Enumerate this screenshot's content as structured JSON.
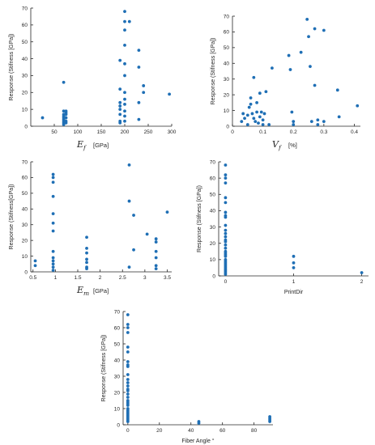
{
  "point_color": "#1f6fb5",
  "chart_data": [
    {
      "type": "scatter",
      "title": "",
      "ylabel": "Response (Stifness [GPa])",
      "xlabel": {
        "symbol": "E",
        "sub": "f",
        "unit": "[GPa]",
        "plain": ""
      },
      "xlim": [
        0,
        300
      ],
      "ylim": [
        0,
        70
      ],
      "xticks": [
        50,
        100,
        150,
        200,
        250,
        300
      ],
      "yticks": [
        0,
        10,
        20,
        30,
        40,
        50,
        60,
        70
      ],
      "grid": false,
      "points": [
        [
          25,
          5
        ],
        [
          70,
          26
        ],
        [
          70,
          9
        ],
        [
          70,
          7
        ],
        [
          70,
          6
        ],
        [
          70,
          5
        ],
        [
          70,
          4
        ],
        [
          70,
          3
        ],
        [
          70,
          2
        ],
        [
          70,
          1
        ],
        [
          75,
          9
        ],
        [
          75,
          8
        ],
        [
          75,
          7
        ],
        [
          75,
          5
        ],
        [
          75,
          3
        ],
        [
          75,
          2
        ],
        [
          190,
          39
        ],
        [
          190,
          22
        ],
        [
          190,
          14
        ],
        [
          190,
          12
        ],
        [
          190,
          10
        ],
        [
          190,
          7
        ],
        [
          190,
          3
        ],
        [
          190,
          2
        ],
        [
          200,
          68
        ],
        [
          200,
          62
        ],
        [
          200,
          57
        ],
        [
          200,
          48
        ],
        [
          200,
          37
        ],
        [
          200,
          30
        ],
        [
          200,
          20
        ],
        [
          200,
          16
        ],
        [
          200,
          13
        ],
        [
          200,
          9
        ],
        [
          200,
          6
        ],
        [
          200,
          3
        ],
        [
          210,
          62
        ],
        [
          230,
          45
        ],
        [
          230,
          35
        ],
        [
          230,
          14
        ],
        [
          230,
          4
        ],
        [
          240,
          24
        ],
        [
          240,
          20
        ],
        [
          295,
          19
        ]
      ]
    },
    {
      "type": "scatter",
      "title": "",
      "ylabel": "Response (Stifness [GPa])",
      "xlabel": {
        "symbol": "V",
        "sub": "f",
        "unit": "[%]",
        "plain": ""
      },
      "xlim": [
        0,
        0.42
      ],
      "ylim": [
        0,
        70
      ],
      "xticks": [
        0,
        0.1,
        0.2,
        0.3,
        0.4
      ],
      "xtick_labels": [
        "0",
        "0.1",
        "0.2",
        "0.3",
        "0.4"
      ],
      "yticks": [
        0,
        10,
        20,
        30,
        40,
        50,
        60,
        70
      ],
      "grid": false,
      "points": [
        [
          0.03,
          3
        ],
        [
          0.035,
          8
        ],
        [
          0.04,
          5
        ],
        [
          0.05,
          1
        ],
        [
          0.05,
          7
        ],
        [
          0.055,
          12
        ],
        [
          0.06,
          18
        ],
        [
          0.06,
          14
        ],
        [
          0.065,
          8
        ],
        [
          0.07,
          31
        ],
        [
          0.07,
          5
        ],
        [
          0.075,
          3
        ],
        [
          0.08,
          9
        ],
        [
          0.08,
          15
        ],
        [
          0.085,
          2
        ],
        [
          0.09,
          21
        ],
        [
          0.09,
          6
        ],
        [
          0.095,
          9
        ],
        [
          0.1,
          4
        ],
        [
          0.1,
          1
        ],
        [
          0.105,
          8
        ],
        [
          0.11,
          22
        ],
        [
          0.12,
          1
        ],
        [
          0.13,
          37
        ],
        [
          0.185,
          45
        ],
        [
          0.19,
          36
        ],
        [
          0.195,
          9
        ],
        [
          0.2,
          3
        ],
        [
          0.2,
          1
        ],
        [
          0.225,
          47
        ],
        [
          0.245,
          68
        ],
        [
          0.25,
          57
        ],
        [
          0.255,
          38
        ],
        [
          0.26,
          3
        ],
        [
          0.27,
          62
        ],
        [
          0.27,
          26
        ],
        [
          0.28,
          1
        ],
        [
          0.28,
          4
        ],
        [
          0.3,
          61
        ],
        [
          0.3,
          3
        ],
        [
          0.345,
          23
        ],
        [
          0.35,
          6
        ],
        [
          0.41,
          13
        ]
      ]
    },
    {
      "type": "scatter",
      "title": "",
      "ylabel": "Response (Stifness[GPa])",
      "xlabel": {
        "symbol": "E",
        "sub": "m",
        "unit": "[GPa]",
        "plain": ""
      },
      "xlim": [
        0.45,
        3.6
      ],
      "ylim": [
        0,
        70
      ],
      "xticks": [
        0.5,
        1,
        1.5,
        2,
        2.5,
        3,
        3.5
      ],
      "xtick_labels": [
        "0.5",
        "1",
        "1.5",
        "2",
        "2.5",
        "3",
        "3.5"
      ],
      "yticks": [
        0,
        10,
        20,
        30,
        40,
        50,
        60,
        70
      ],
      "grid": false,
      "points": [
        [
          0.55,
          7
        ],
        [
          0.55,
          4
        ],
        [
          0.95,
          62
        ],
        [
          0.95,
          60
        ],
        [
          0.95,
          57
        ],
        [
          0.95,
          48
        ],
        [
          0.95,
          37
        ],
        [
          0.95,
          31
        ],
        [
          0.95,
          26
        ],
        [
          0.95,
          13
        ],
        [
          0.95,
          9
        ],
        [
          0.95,
          7
        ],
        [
          0.95,
          5
        ],
        [
          0.95,
          3
        ],
        [
          0.95,
          1
        ],
        [
          1.7,
          22
        ],
        [
          1.7,
          15
        ],
        [
          1.7,
          12
        ],
        [
          1.7,
          8
        ],
        [
          1.7,
          6
        ],
        [
          1.7,
          3
        ],
        [
          1.7,
          2
        ],
        [
          2.65,
          68
        ],
        [
          2.65,
          45
        ],
        [
          2.75,
          36
        ],
        [
          2.75,
          14
        ],
        [
          2.65,
          3
        ],
        [
          3.05,
          24
        ],
        [
          3.25,
          21
        ],
        [
          3.25,
          19
        ],
        [
          3.25,
          13
        ],
        [
          3.25,
          9
        ],
        [
          3.25,
          4
        ],
        [
          3.25,
          2
        ],
        [
          3.5,
          38
        ]
      ]
    },
    {
      "type": "scatter",
      "title": "",
      "ylabel": "Response (Stifness [GPa])",
      "xlabel": {
        "symbol": "",
        "sub": "",
        "unit": "",
        "plain": "PrintDir"
      },
      "xlim": [
        -0.1,
        2.1
      ],
      "ylim": [
        0,
        70
      ],
      "xticks": [
        0,
        1,
        2
      ],
      "xtick_labels": [
        "0",
        "1",
        "2"
      ],
      "yticks": [
        0,
        10,
        20,
        30,
        40,
        50,
        60,
        70
      ],
      "grid": false,
      "points": [
        [
          0,
          68
        ],
        [
          0,
          62
        ],
        [
          0,
          60
        ],
        [
          0,
          57
        ],
        [
          0,
          48
        ],
        [
          0,
          45
        ],
        [
          0,
          39
        ],
        [
          0,
          37
        ],
        [
          0,
          36
        ],
        [
          0,
          31
        ],
        [
          0,
          28
        ],
        [
          0,
          26
        ],
        [
          0,
          24
        ],
        [
          0,
          22
        ],
        [
          0,
          21
        ],
        [
          0,
          19
        ],
        [
          0,
          17
        ],
        [
          0,
          15
        ],
        [
          0,
          14
        ],
        [
          0,
          13
        ],
        [
          0,
          12
        ],
        [
          0,
          10
        ],
        [
          0,
          9
        ],
        [
          0,
          8
        ],
        [
          0,
          7
        ],
        [
          0,
          6
        ],
        [
          0,
          5
        ],
        [
          0,
          4
        ],
        [
          0,
          3
        ],
        [
          0,
          2
        ],
        [
          0,
          1
        ],
        [
          1,
          12
        ],
        [
          1,
          8
        ],
        [
          1,
          5
        ],
        [
          2,
          2
        ]
      ]
    },
    {
      "type": "scatter",
      "title": "",
      "ylabel": "Response (Stifness [GPa])",
      "xlabel": {
        "symbol": "",
        "sub": "",
        "unit": "",
        "plain": "Fiber Angle °"
      },
      "xlim": [
        -3,
        92
      ],
      "ylim": [
        0,
        70
      ],
      "xticks": [
        0,
        20,
        40,
        60,
        80
      ],
      "xtick_labels": [
        "0",
        "20",
        "40",
        "60",
        "80"
      ],
      "yticks": [
        0,
        10,
        20,
        30,
        40,
        50,
        60,
        70
      ],
      "grid": false,
      "points": [
        [
          0,
          68
        ],
        [
          0,
          62
        ],
        [
          0,
          60
        ],
        [
          0,
          57
        ],
        [
          0,
          48
        ],
        [
          0,
          45
        ],
        [
          0,
          39
        ],
        [
          0,
          37
        ],
        [
          0,
          36
        ],
        [
          0,
          31
        ],
        [
          0,
          28
        ],
        [
          0,
          26
        ],
        [
          0,
          24
        ],
        [
          0,
          22
        ],
        [
          0,
          21
        ],
        [
          0,
          19
        ],
        [
          0,
          17
        ],
        [
          0,
          15
        ],
        [
          0,
          14
        ],
        [
          0,
          13
        ],
        [
          0,
          12
        ],
        [
          0,
          10
        ],
        [
          0,
          9
        ],
        [
          0,
          8
        ],
        [
          0,
          7
        ],
        [
          0,
          6
        ],
        [
          0,
          5
        ],
        [
          0,
          4
        ],
        [
          0,
          3
        ],
        [
          0,
          2
        ],
        [
          45,
          2
        ],
        [
          45,
          1
        ],
        [
          90,
          5
        ],
        [
          90,
          4
        ],
        [
          90,
          3
        ],
        [
          90,
          2
        ]
      ]
    }
  ]
}
